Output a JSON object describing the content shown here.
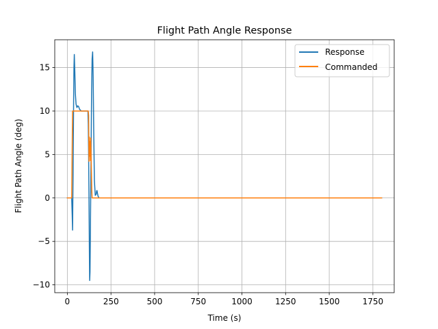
{
  "chart_data": {
    "type": "line",
    "title": "Flight Path Angle Response",
    "xlabel": "Time (s)",
    "ylabel": "Flight Path Angle (deg)",
    "xlim": [
      -72,
      1872
    ],
    "ylim": [
      -10.9,
      18.2
    ],
    "xticks": [
      0,
      250,
      500,
      750,
      1000,
      1250,
      1500,
      1750
    ],
    "yticks": [
      -10,
      -5,
      0,
      5,
      10,
      15
    ],
    "xtick_labels": [
      "0",
      "250",
      "500",
      "750",
      "1000",
      "1250",
      "1500",
      "1750"
    ],
    "ytick_labels": [
      "−10",
      "−5",
      "0",
      "5",
      "10",
      "15"
    ],
    "grid": true,
    "legend_position": "top-right",
    "series": [
      {
        "name": "Response",
        "color": "#1f77b4",
        "x": [
          0,
          20,
          25,
          28,
          30,
          33,
          36,
          38,
          40,
          43,
          46,
          50,
          55,
          60,
          65,
          70,
          75,
          80,
          85,
          90,
          100,
          110,
          118,
          120,
          122,
          124,
          126,
          127,
          128,
          130,
          133,
          136,
          139,
          142,
          145,
          148,
          151,
          155,
          160,
          165,
          168,
          170,
          173,
          176,
          180,
          185,
          190,
          200,
          220,
          250,
          400,
          800,
          1200,
          1600,
          1800
        ],
        "y": [
          0,
          0,
          0,
          -2,
          -3.7,
          3,
          11,
          15,
          16.5,
          14.5,
          12,
          10.8,
          10.4,
          10.6,
          10.5,
          10.2,
          10.1,
          10.0,
          10.0,
          10.0,
          10.0,
          10.0,
          10.0,
          8.5,
          5.0,
          0.5,
          -5.0,
          -7.5,
          -9.5,
          -8.5,
          -2,
          5,
          12,
          16,
          16.8,
          14,
          8,
          2,
          0.3,
          0.4,
          0.8,
          0.85,
          0.5,
          0.2,
          0.05,
          0.0,
          0.0,
          0.0,
          0.0,
          0.0,
          0.0,
          0.0,
          0.0,
          0.0,
          0.0
        ]
      },
      {
        "name": "Commanded",
        "color": "#ff7f0e",
        "x": [
          0,
          25,
          30,
          60,
          90,
          110,
          118,
          120,
          122,
          124,
          126,
          128,
          130,
          132,
          134,
          136,
          138,
          140,
          142,
          145,
          200,
          400,
          800,
          1200,
          1600,
          1800
        ],
        "y": [
          0,
          0,
          10,
          10,
          10,
          10,
          10,
          10,
          9.5,
          4.2,
          7.0,
          4.8,
          6.5,
          4.3,
          6.9,
          5.0,
          3.0,
          1.0,
          0,
          0,
          0,
          0,
          0,
          0,
          0,
          0
        ]
      }
    ]
  }
}
